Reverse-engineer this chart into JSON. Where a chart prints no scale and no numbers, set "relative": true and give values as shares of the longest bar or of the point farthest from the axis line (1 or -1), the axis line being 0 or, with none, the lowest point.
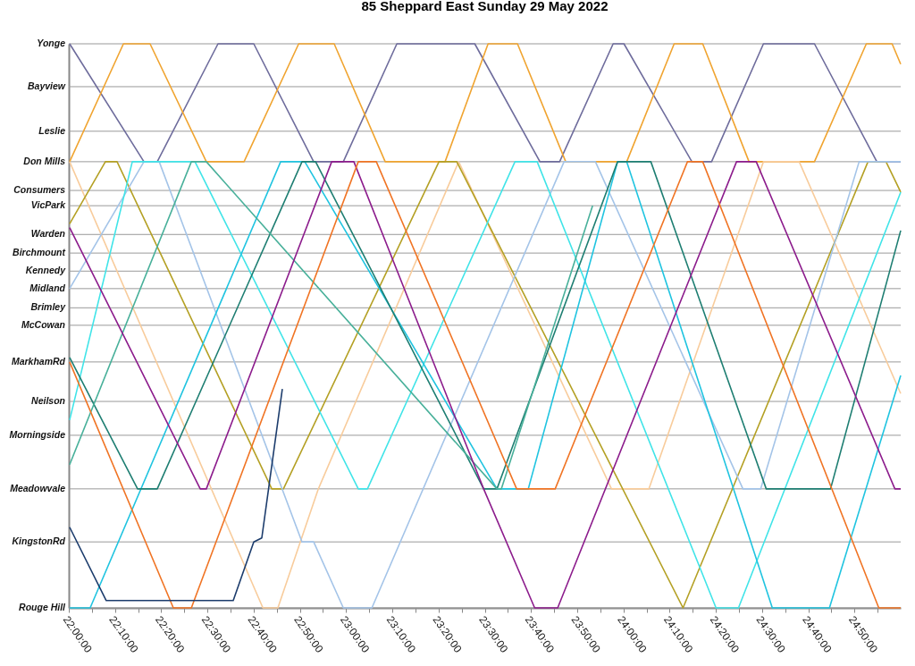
{
  "chart_data": {
    "type": "line",
    "title": "85 Sheppard East Sunday 29 May 2022",
    "relative": true,
    "line_style": "solid",
    "xlim": [
      22,
      25
    ],
    "xticks": [
      {
        "value": 22,
        "label": "22:00:00"
      },
      {
        "value": 22.0833,
        "label": null
      },
      {
        "value": 22.1667,
        "label": "22:10:00"
      },
      {
        "value": 22.25,
        "label": null
      },
      {
        "value": 22.3333,
        "label": "22:20:00"
      },
      {
        "value": 22.4167,
        "label": null
      },
      {
        "value": 22.5,
        "label": "22:30:00"
      },
      {
        "value": 22.5833,
        "label": null
      },
      {
        "value": 22.6667,
        "label": "22:40:00"
      },
      {
        "value": 22.75,
        "label": null
      },
      {
        "value": 22.8333,
        "label": "22:50:00"
      },
      {
        "value": 22.9167,
        "label": null
      },
      {
        "value": 23,
        "label": "23:00:00"
      },
      {
        "value": 23.0833,
        "label": null
      },
      {
        "value": 23.1667,
        "label": "23:10:00"
      },
      {
        "value": 23.25,
        "label": null
      },
      {
        "value": 23.3333,
        "label": "23:20:00"
      },
      {
        "value": 23.4167,
        "label": null
      },
      {
        "value": 23.5,
        "label": "23:30:00"
      },
      {
        "value": 23.5833,
        "label": null
      },
      {
        "value": 23.6667,
        "label": "23:40:00"
      },
      {
        "value": 23.75,
        "label": null
      },
      {
        "value": 23.8333,
        "label": "23:50:00"
      },
      {
        "value": 23.9167,
        "label": null
      },
      {
        "value": 24,
        "label": "24:00:00"
      },
      {
        "value": 24.0833,
        "label": null
      },
      {
        "value": 24.1667,
        "label": "24:10:00"
      },
      {
        "value": 24.25,
        "label": null
      },
      {
        "value": 24.3333,
        "label": "24:20:00"
      },
      {
        "value": 24.4167,
        "label": null
      },
      {
        "value": 24.5,
        "label": "24:30:00"
      },
      {
        "value": 24.5833,
        "label": null
      },
      {
        "value": 24.6667,
        "label": "24:40:00"
      },
      {
        "value": 24.75,
        "label": null
      },
      {
        "value": 24.8333,
        "label": "24:50:00"
      },
      {
        "value": 24.9167,
        "label": null
      }
    ],
    "ref_lines": [
      {
        "axis": "y",
        "value": 1,
        "label": "Yonge"
      },
      {
        "axis": "y",
        "value": 0.924,
        "label": "Bayview"
      },
      {
        "axis": "y",
        "value": 0.845,
        "label": "Leslie"
      },
      {
        "axis": "y",
        "value": 0.791,
        "label": "Don Mills"
      },
      {
        "axis": "y",
        "value": 0.74,
        "label": "Consumers"
      },
      {
        "axis": "y",
        "value": 0.713,
        "label": "VicPark"
      },
      {
        "axis": "y",
        "value": 0.662,
        "label": "Warden"
      },
      {
        "axis": "y",
        "value": 0.629,
        "label": "Birchmount"
      },
      {
        "axis": "y",
        "value": 0.597,
        "label": "Kennedy"
      },
      {
        "axis": "y",
        "value": 0.566,
        "label": "Midland"
      },
      {
        "axis": "y",
        "value": 0.532,
        "label": "Brimley"
      },
      {
        "axis": "y",
        "value": 0.501,
        "label": "McCowan"
      },
      {
        "axis": "y",
        "value": 0.436,
        "label": "MarkhamRd"
      },
      {
        "axis": "y",
        "value": 0.366,
        "label": "Neilson"
      },
      {
        "axis": "y",
        "value": 0.306,
        "label": "Morningside"
      },
      {
        "axis": "y",
        "value": 0.211,
        "label": "Meadowvale"
      },
      {
        "axis": "y",
        "value": 0.117,
        "label": "KingstonRd"
      },
      {
        "axis": "y",
        "value": 0,
        "label": "Rouge Hill"
      }
    ],
    "series": [
      {
        "color": "#6e6c9c",
        "x": [
          22.003,
          22.271,
          22.319,
          22.538,
          22.667,
          22.883,
          22.99,
          23.183,
          23.464,
          23.699,
          23.77,
          23.963,
          24.002,
          24.247,
          24.318,
          24.505,
          24.689,
          24.914,
          25
        ],
        "values": [
          1,
          0.791,
          0.791,
          1,
          1,
          0.791,
          0.791,
          1,
          1,
          0.791,
          0.791,
          1,
          1,
          0.791,
          0.791,
          1,
          1,
          0.791,
          0.791
        ]
      },
      {
        "color": "#f0a430",
        "x": [
          22.003,
          22.197,
          22.293,
          22.496,
          22.632,
          22.829,
          22.957,
          23.141,
          23.357,
          23.512,
          23.618,
          23.792,
          24.012,
          24.183,
          24.286,
          24.453,
          24.689,
          24.876,
          24.969,
          25
        ],
        "values": [
          0.791,
          1,
          1,
          0.791,
          0.791,
          1,
          1,
          0.791,
          0.791,
          1,
          1,
          0.791,
          0.791,
          1,
          1,
          0.791,
          0.791,
          1,
          1,
          0.964
        ]
      },
      {
        "color": "#f8cc9c",
        "x": [
          22.003,
          22.7,
          22.754,
          22.9,
          23.406,
          23.957,
          24.092,
          24.505,
          24.634,
          25
        ],
        "values": [
          0.791,
          0,
          0,
          0.211,
          0.791,
          0.211,
          0.211,
          0.791,
          0.791,
          0.38
        ]
      },
      {
        "color": "#b4a024",
        "x": [
          22.003,
          22.132,
          22.174,
          22.732,
          22.774,
          23.335,
          23.399,
          24.215,
          24.882,
          24.947,
          25
        ],
        "values": [
          0.681,
          0.791,
          0.791,
          0.211,
          0.211,
          0.791,
          0.791,
          0,
          0.791,
          0.791,
          0.737
        ]
      },
      {
        "color": "#a4c4e8",
        "x": [
          22.003,
          22.271,
          22.326,
          22.841,
          22.883,
          22.99,
          23.093,
          23.786,
          23.899,
          24.431,
          24.495,
          24.85,
          25
        ],
        "values": [
          0.566,
          0.791,
          0.791,
          0.117,
          0.117,
          0,
          0,
          0.791,
          0.791,
          0.211,
          0.211,
          0.791,
          0.791
        ]
      },
      {
        "color": "#40e4e8",
        "x": [
          22.003,
          22.229,
          22.455,
          23.044,
          23.077,
          23.609,
          23.689,
          24.334,
          24.415,
          25
        ],
        "values": [
          0.333,
          0.791,
          0.791,
          0.211,
          0.211,
          0.791,
          0.791,
          0,
          0,
          0.737
        ]
      },
      {
        "color": "#20c4e0",
        "x": [
          22.003,
          22.077,
          22.764,
          22.851,
          23.544,
          23.657,
          23.979,
          24.012,
          24.537,
          24.743,
          25
        ],
        "values": [
          0,
          0,
          0.791,
          0.791,
          0.211,
          0.211,
          0.791,
          0.791,
          0,
          0,
          0.412
        ]
      },
      {
        "color": "#1e7e72",
        "x": [
          22.003,
          22.248,
          22.319,
          22.841,
          22.89,
          23.496,
          23.544,
          23.979,
          24.099,
          24.515,
          24.747,
          25
        ],
        "values": [
          0.444,
          0.211,
          0.211,
          0.791,
          0.791,
          0.211,
          0.211,
          0.791,
          0.791,
          0.211,
          0.211,
          0.669
        ]
      },
      {
        "color": "#48b09a",
        "x": [
          22.003,
          22.442,
          22.496,
          23.544,
          23.56,
          23.889
        ],
        "values": [
          0.254,
          0.791,
          0.791,
          0.211,
          0.211,
          0.713
        ]
      },
      {
        "color": "#8c1c8c",
        "x": [
          22.003,
          22.474,
          22.496,
          22.948,
          23.028,
          23.496,
          23.68,
          23.763,
          24.408,
          24.479,
          24.979,
          25
        ],
        "values": [
          0.674,
          0.211,
          0.211,
          0.791,
          0.791,
          0.211,
          0,
          0,
          0.791,
          0.791,
          0.211,
          0.211
        ]
      },
      {
        "color": "#f07424",
        "x": [
          22.003,
          22.377,
          22.442,
          23.044,
          23.109,
          23.615,
          23.754,
          24.231,
          24.286,
          24.921,
          25
        ],
        "values": [
          0.436,
          0,
          0,
          0.791,
          0.791,
          0.211,
          0.211,
          0.791,
          0.791,
          0,
          0
        ]
      },
      {
        "color": "#1c3c6c",
        "x": [
          22.003,
          22.135,
          22.593,
          22.667,
          22.696,
          22.77
        ],
        "values": [
          0.143,
          0.013,
          0.013,
          0.117,
          0.124,
          0.388
        ]
      }
    ]
  }
}
